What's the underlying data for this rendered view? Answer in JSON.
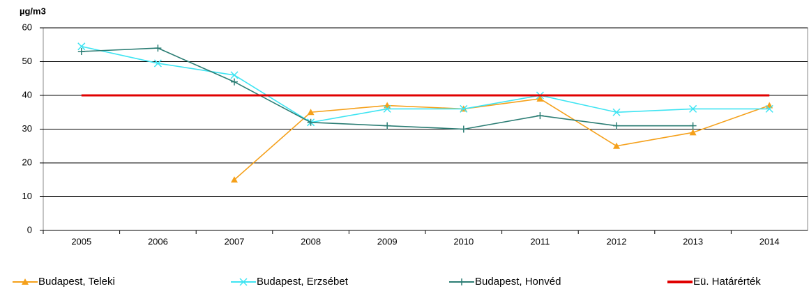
{
  "chart_data": {
    "type": "line",
    "y_label": "µg/m3",
    "categories": [
      "2005",
      "2006",
      "2007",
      "2008",
      "2009",
      "2010",
      "2011",
      "2012",
      "2013",
      "2014"
    ],
    "series": [
      {
        "name": "Budapest, Teleki",
        "color": "#f5a01a",
        "marker": "triangle",
        "values": [
          null,
          null,
          15,
          35,
          37,
          36,
          39,
          25,
          29,
          37
        ]
      },
      {
        "name": "Budapest, Erzsébet",
        "color": "#3ee4f2",
        "marker": "x",
        "values": [
          54.5,
          49.5,
          46,
          32,
          36,
          36,
          40,
          35,
          36,
          36
        ]
      },
      {
        "name": "Budapest, Honvéd",
        "color": "#2b7d74",
        "marker": "plus",
        "values": [
          53,
          54,
          44,
          32,
          31,
          30,
          34,
          31,
          31,
          null
        ]
      },
      {
        "name": "Eü. Határérték",
        "color": "#e00000",
        "marker": "none",
        "values": [
          40,
          40,
          40,
          40,
          40,
          40,
          40,
          40,
          40,
          40
        ]
      }
    ],
    "ylim": [
      0,
      60
    ],
    "yticks": [
      0,
      10,
      20,
      30,
      40,
      50,
      60
    ],
    "grid": true,
    "legend": "bottom"
  }
}
